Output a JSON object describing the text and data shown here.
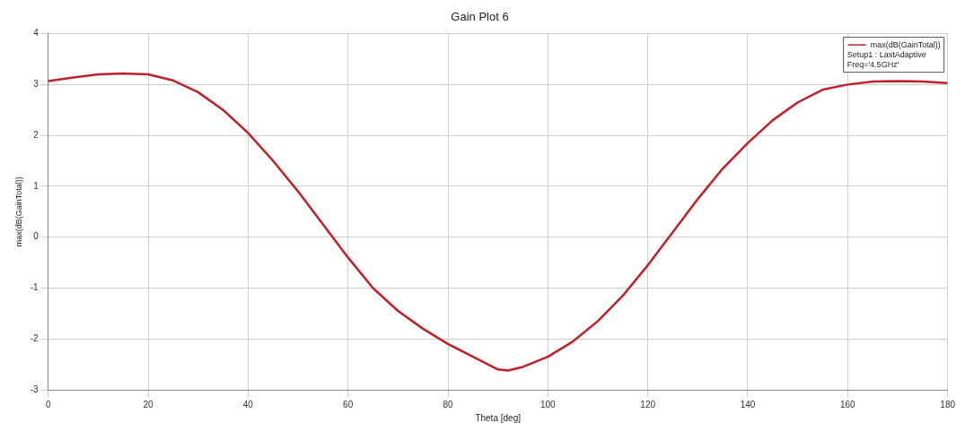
{
  "chart_data": {
    "type": "line",
    "title": "Gain Plot 6",
    "xlabel": "Theta [deg]",
    "ylabel": "max(dB(GainTotal))",
    "x": [
      0,
      5,
      10,
      15,
      20,
      25,
      30,
      35,
      40,
      45,
      50,
      55,
      60,
      65,
      70,
      75,
      80,
      85,
      90,
      92,
      95,
      100,
      105,
      110,
      115,
      120,
      125,
      130,
      135,
      140,
      145,
      150,
      155,
      160,
      165,
      170,
      175,
      180
    ],
    "series": [
      {
        "name": "max(dB(GainTotal))",
        "color": "#c0202a",
        "values": [
          3.07,
          3.14,
          3.2,
          3.22,
          3.2,
          3.08,
          2.85,
          2.5,
          2.05,
          1.5,
          0.9,
          0.25,
          -0.4,
          -1.0,
          -1.45,
          -1.8,
          -2.1,
          -2.35,
          -2.6,
          -2.62,
          -2.55,
          -2.35,
          -2.05,
          -1.65,
          -1.15,
          -0.55,
          0.1,
          0.75,
          1.35,
          1.85,
          2.3,
          2.65,
          2.9,
          3.0,
          3.06,
          3.07,
          3.06,
          3.03
        ]
      }
    ],
    "xlim": [
      0,
      180
    ],
    "xticks": [
      0,
      20,
      40,
      60,
      80,
      100,
      120,
      140,
      160,
      180
    ],
    "ylim": [
      -3,
      4
    ],
    "yticks": [
      -3,
      -2,
      -1,
      0,
      1,
      2,
      3,
      4
    ],
    "annotations": [
      "Setup1 : LastAdaptive",
      "Freq='4.5GHz'"
    ],
    "grid": true,
    "legend": "top right",
    "marker": "none",
    "line_style": "solid"
  }
}
